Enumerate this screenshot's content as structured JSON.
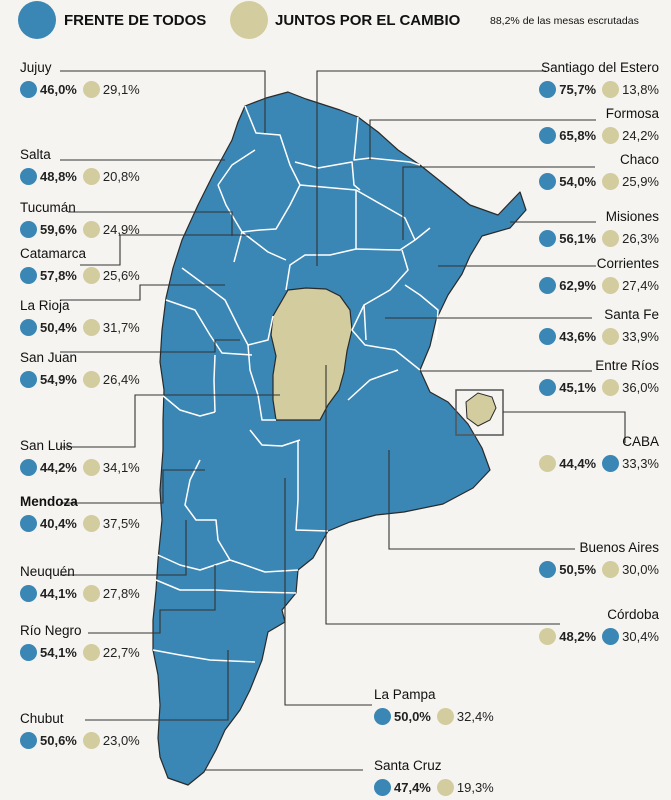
{
  "colors": {
    "frente_de_todos": "#3a86b4",
    "juntos_por_el_cambio": "#d3cc9e",
    "map_outline": "#2a2a2a",
    "leader_line": "#333333"
  },
  "legend": [
    {
      "label": "FRENTE DE TODOS",
      "color": "#3a86b4"
    },
    {
      "label": "JUNTOS POR EL CAMBIO",
      "color": "#d3cc9e"
    }
  ],
  "header_note": "88,2% de las mesas escrutadas",
  "provinces": [
    {
      "name": "Jujuy",
      "frente": "46,0%",
      "juntos": "29,1%",
      "winner": "frente"
    },
    {
      "name": "Salta",
      "frente": "48,8%",
      "juntos": "20,8%",
      "winner": "frente"
    },
    {
      "name": "Tucumán",
      "frente": "59,6%",
      "juntos": "24,9%",
      "winner": "frente"
    },
    {
      "name": "Catamarca",
      "frente": "57,8%",
      "juntos": "25,6%",
      "winner": "frente"
    },
    {
      "name": "La Rioja",
      "frente": "50,4%",
      "juntos": "31,7%",
      "winner": "frente"
    },
    {
      "name": "San Juan",
      "frente": "54,9%",
      "juntos": "26,4%",
      "winner": "frente"
    },
    {
      "name": "San Luis",
      "frente": "44,2%",
      "juntos": "34,1%",
      "winner": "frente"
    },
    {
      "name": "Mendoza",
      "frente": "40,4%",
      "juntos": "37,5%",
      "winner": "frente"
    },
    {
      "name": "Neuquén",
      "frente": "44,1%",
      "juntos": "27,8%",
      "winner": "frente"
    },
    {
      "name": "Río Negro",
      "frente": "54,1%",
      "juntos": "22,7%",
      "winner": "frente"
    },
    {
      "name": "Chubut",
      "frente": "50,6%",
      "juntos": "23,0%",
      "winner": "frente"
    },
    {
      "name": "Santiago del Estero",
      "frente": "75,7%",
      "juntos": "13,8%",
      "winner": "frente"
    },
    {
      "name": "Formosa",
      "frente": "65,8%",
      "juntos": "24,2%",
      "winner": "frente"
    },
    {
      "name": "Chaco",
      "frente": "54,0%",
      "juntos": "25,9%",
      "winner": "frente"
    },
    {
      "name": "Misiones",
      "frente": "56,1%",
      "juntos": "26,3%",
      "winner": "frente"
    },
    {
      "name": "Corrientes",
      "frente": "62,9%",
      "juntos": "27,4%",
      "winner": "frente"
    },
    {
      "name": "Santa Fe",
      "frente": "43,6%",
      "juntos": "33,9%",
      "winner": "frente"
    },
    {
      "name": "Entre Ríos",
      "frente": "45,1%",
      "juntos": "36,0%",
      "winner": "frente"
    },
    {
      "name": "CABA",
      "frente": "33,3%",
      "juntos": "44,4%",
      "winner": "juntos"
    },
    {
      "name": "Buenos Aires",
      "frente": "50,5%",
      "juntos": "30,0%",
      "winner": "frente"
    },
    {
      "name": "Córdoba",
      "frente": "30,4%",
      "juntos": "48,2%",
      "winner": "juntos"
    },
    {
      "name": "La Pampa",
      "frente": "50,0%",
      "juntos": "32,4%",
      "winner": "frente"
    },
    {
      "name": "Santa Cruz",
      "frente": "47,4%",
      "juntos": "19,3%",
      "winner": "frente"
    }
  ]
}
